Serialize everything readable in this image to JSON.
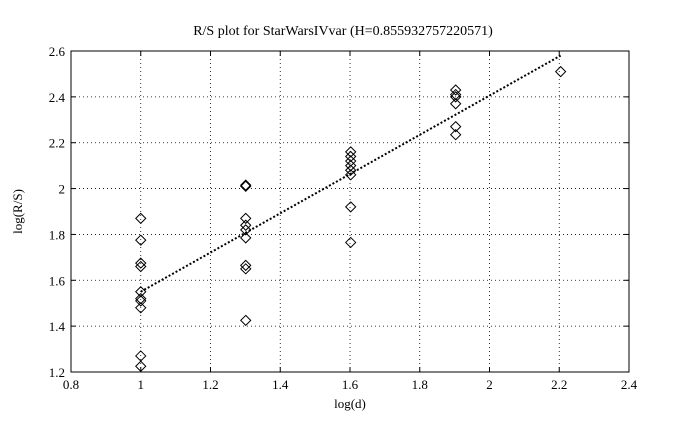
{
  "chart_data": {
    "type": "scatter",
    "title": "R/S plot for StarWarsIVvar (H=0.855932757220571)",
    "xlabel": "log(d)",
    "ylabel": "log(R/S)",
    "xlim": [
      0.8,
      2.4
    ],
    "ylim": [
      1.2,
      2.6
    ],
    "xticks": [
      "0.8",
      "1",
      "1.2",
      "1.4",
      "1.6",
      "1.8",
      "2",
      "2.2",
      "2.4"
    ],
    "yticks": [
      "1.2",
      "1.4",
      "1.6",
      "1.8",
      "2",
      "2.2",
      "2.4",
      "2.6"
    ],
    "grid": true,
    "marker": "diamond",
    "points": [
      {
        "x": 1.0,
        "y": 1.87
      },
      {
        "x": 1.0,
        "y": 1.775
      },
      {
        "x": 1.0,
        "y": 1.675
      },
      {
        "x": 1.0,
        "y": 1.66
      },
      {
        "x": 1.0,
        "y": 1.55
      },
      {
        "x": 1.0,
        "y": 1.52
      },
      {
        "x": 1.0,
        "y": 1.51
      },
      {
        "x": 1.0,
        "y": 1.48
      },
      {
        "x": 1.0,
        "y": 1.27
      },
      {
        "x": 1.0,
        "y": 1.225
      },
      {
        "x": 1.301,
        "y": 2.015
      },
      {
        "x": 1.301,
        "y": 2.01
      },
      {
        "x": 1.301,
        "y": 1.87
      },
      {
        "x": 1.301,
        "y": 1.84
      },
      {
        "x": 1.301,
        "y": 1.82
      },
      {
        "x": 1.301,
        "y": 1.785
      },
      {
        "x": 1.301,
        "y": 1.665
      },
      {
        "x": 1.301,
        "y": 1.65
      },
      {
        "x": 1.301,
        "y": 1.425
      },
      {
        "x": 1.602,
        "y": 2.16
      },
      {
        "x": 1.602,
        "y": 2.14
      },
      {
        "x": 1.602,
        "y": 2.12
      },
      {
        "x": 1.602,
        "y": 2.1
      },
      {
        "x": 1.602,
        "y": 2.08
      },
      {
        "x": 1.602,
        "y": 2.06
      },
      {
        "x": 1.602,
        "y": 1.92
      },
      {
        "x": 1.602,
        "y": 1.765
      },
      {
        "x": 1.903,
        "y": 2.43
      },
      {
        "x": 1.903,
        "y": 2.41
      },
      {
        "x": 1.903,
        "y": 2.4
      },
      {
        "x": 1.903,
        "y": 2.37
      },
      {
        "x": 1.903,
        "y": 2.27
      },
      {
        "x": 1.903,
        "y": 2.235
      },
      {
        "x": 2.204,
        "y": 2.51
      }
    ],
    "fit_line": {
      "style": "dotted",
      "x": [
        1.0,
        2.204
      ],
      "y": [
        1.55,
        2.58
      ]
    }
  }
}
